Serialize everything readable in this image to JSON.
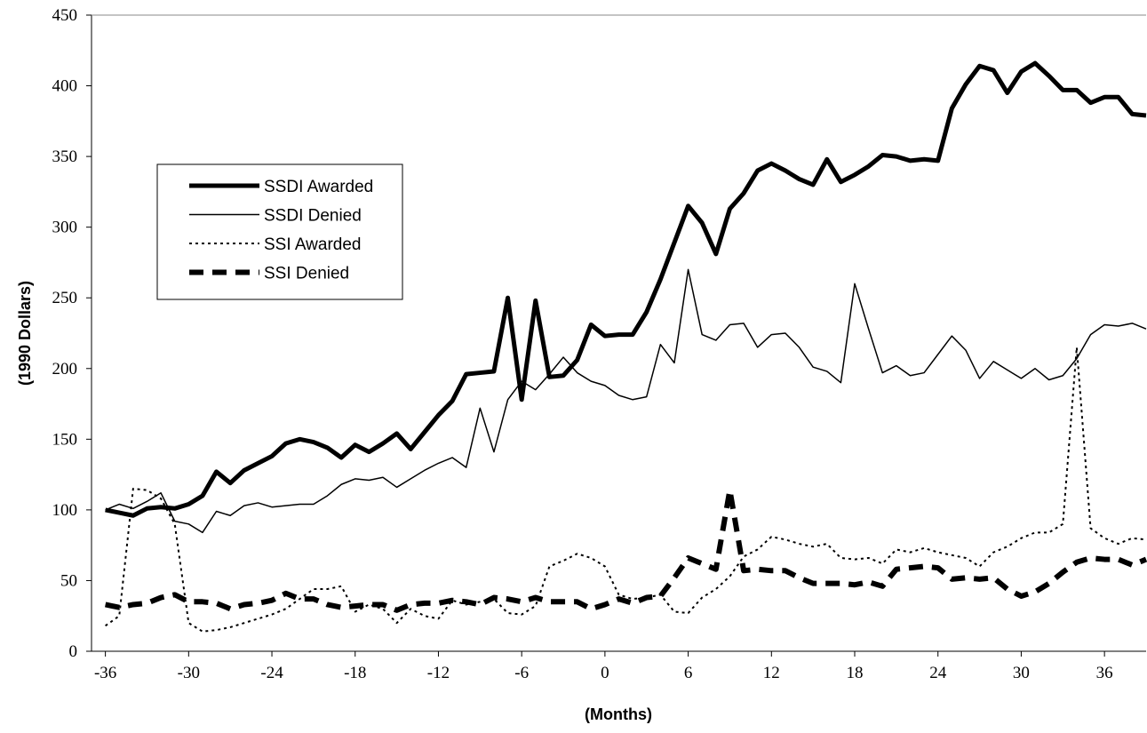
{
  "chart_data": {
    "type": "line",
    "x_label": "(Months)",
    "y_label": "(1990 Dollars)",
    "xlim": [
      -37,
      39
    ],
    "xticks": [
      -36,
      -30,
      -24,
      -18,
      -12,
      -6,
      0,
      6,
      12,
      18,
      24,
      30,
      36
    ],
    "ylim": [
      0,
      450
    ],
    "yticks": [
      0,
      50,
      100,
      150,
      200,
      250,
      300,
      350,
      400,
      450
    ],
    "x": [
      -36,
      -35,
      -34,
      -33,
      -32,
      -31,
      -30,
      -29,
      -28,
      -27,
      -26,
      -25,
      -24,
      -23,
      -22,
      -21,
      -20,
      -19,
      -18,
      -17,
      -16,
      -15,
      -14,
      -13,
      -12,
      -11,
      -10,
      -9,
      -8,
      -7,
      -6,
      -5,
      -4,
      -3,
      -2,
      -1,
      0,
      1,
      2,
      3,
      4,
      5,
      6,
      7,
      8,
      9,
      10,
      11,
      12,
      13,
      14,
      15,
      16,
      17,
      18,
      19,
      20,
      21,
      22,
      23,
      24,
      25,
      26,
      27,
      28,
      29,
      30,
      31,
      32,
      33,
      34,
      35,
      36,
      37,
      38,
      39
    ],
    "series": [
      {
        "name": "SSDI Awarded",
        "color": "#000000",
        "width": 5,
        "dash": "none",
        "values": [
          100,
          98,
          96,
          101,
          102,
          101,
          104,
          110,
          127,
          119,
          128,
          133,
          138,
          147,
          150,
          148,
          144,
          137,
          146,
          141,
          147,
          154,
          143,
          155,
          167,
          177,
          196,
          197,
          198,
          250,
          178,
          248,
          194,
          195,
          206,
          231,
          223,
          224,
          224,
          240,
          263,
          289,
          315,
          303,
          281,
          313,
          324,
          340,
          345,
          340,
          334,
          330,
          348,
          332,
          337,
          343,
          351,
          350,
          347,
          348,
          347,
          384,
          401,
          414,
          411,
          395,
          410,
          416,
          407,
          397,
          397,
          388,
          392,
          392,
          380,
          379
        ]
      },
      {
        "name": "SSDI Denied",
        "color": "#000000",
        "width": 1.5,
        "dash": "none",
        "values": [
          100,
          104,
          101,
          106,
          112,
          92,
          90,
          84,
          99,
          96,
          103,
          105,
          102,
          103,
          104,
          104,
          110,
          118,
          122,
          121,
          123,
          116,
          122,
          128,
          133,
          137,
          130,
          172,
          141,
          178,
          191,
          185,
          196,
          208,
          197,
          191,
          188,
          181,
          178,
          180,
          217,
          204,
          270,
          224,
          220,
          231,
          232,
          215,
          224,
          225,
          215,
          201,
          198,
          190,
          260,
          228,
          197,
          202,
          195,
          197,
          210,
          223,
          213,
          193,
          205,
          199,
          193,
          200,
          192,
          195,
          207,
          224,
          231,
          230,
          232,
          228
        ]
      },
      {
        "name": "SSI Awarded",
        "color": "#000000",
        "width": 2,
        "dash": "3 4",
        "values": [
          18,
          25,
          115,
          114,
          108,
          90,
          20,
          14,
          15,
          17,
          20,
          23,
          26,
          30,
          37,
          44,
          44,
          46,
          28,
          33,
          30,
          20,
          30,
          25,
          23,
          36,
          33,
          35,
          37,
          27,
          26,
          32,
          60,
          64,
          69,
          66,
          60,
          40,
          37,
          38,
          40,
          28,
          27,
          38,
          44,
          53,
          67,
          72,
          81,
          79,
          76,
          74,
          76,
          66,
          65,
          66,
          62,
          72,
          70,
          73,
          70,
          68,
          66,
          60,
          70,
          74,
          80,
          84,
          84,
          90,
          215,
          87,
          80,
          76,
          80,
          79
        ]
      },
      {
        "name": "SSI Denied",
        "color": "#000000",
        "width": 6,
        "dash": "16 10",
        "values": [
          33,
          31,
          33,
          34,
          38,
          40,
          35,
          35,
          34,
          30,
          33,
          34,
          36,
          41,
          37,
          37,
          33,
          31,
          32,
          33,
          33,
          29,
          33,
          34,
          34,
          36,
          35,
          33,
          38,
          37,
          35,
          38,
          35,
          35,
          35,
          30,
          33,
          37,
          34,
          38,
          39,
          52,
          66,
          62,
          58,
          114,
          57,
          58,
          57,
          57,
          52,
          48,
          48,
          48,
          47,
          49,
          46,
          58,
          59,
          60,
          59,
          51,
          52,
          51,
          52,
          44,
          39,
          42,
          48,
          56,
          63,
          66,
          65,
          65,
          61,
          65
        ]
      }
    ]
  }
}
